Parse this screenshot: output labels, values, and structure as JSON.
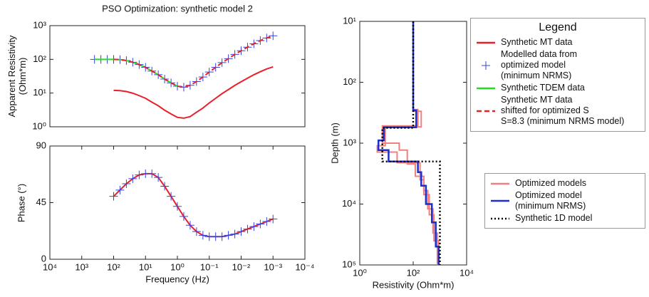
{
  "chart_data": [
    {
      "type": "line",
      "title": "PSO Optimization: synthetic model 2",
      "ylabel": "Apparent Resistivity\n(Ohm*m)",
      "xscale": "log",
      "yscale": "log",
      "xlim": [
        10000,
        0.0001
      ],
      "ylim": [
        1,
        1000
      ],
      "yticks": [
        {
          "value": 1,
          "label": "10⁰"
        },
        {
          "value": 10,
          "label": "10¹"
        },
        {
          "value": 100,
          "label": "10²"
        },
        {
          "value": 1000,
          "label": "10³"
        }
      ],
      "legend_title": "Legend",
      "series": [
        {
          "name": "Synthetic MT data",
          "color": "#e8202a",
          "line_style": "solid",
          "marker": "none",
          "x": [
            100,
            63.1,
            39.8,
            25.1,
            15.8,
            10,
            6.31,
            3.98,
            2.51,
            1.58,
            1,
            0.631,
            0.398,
            0.251,
            0.158,
            0.1,
            0.0631,
            0.0398,
            0.0251,
            0.0158,
            0.01,
            0.00631,
            0.00398,
            0.00251,
            0.00158,
            0.001
          ],
          "values": [
            12,
            11.8,
            11.1,
            9.9,
            8.4,
            7,
            5.4,
            4.2,
            3.1,
            2.4,
            1.9,
            1.8,
            2,
            2.7,
            3.6,
            5.1,
            7,
            9.6,
            12.7,
            16.9,
            21.7,
            27.7,
            35,
            43,
            52,
            60
          ]
        },
        {
          "name": "Modelled data from\noptimized model\n(minimum NRMS)",
          "color": "#3344dd",
          "line_style": "none",
          "marker": "+",
          "x": [
            398,
            251,
            158,
            100,
            63.1,
            39.8,
            25.1,
            15.8,
            10,
            6.31,
            3.98,
            2.51,
            1.58,
            1,
            0.631,
            0.398,
            0.251,
            0.158,
            0.1,
            0.0631,
            0.0398,
            0.0251,
            0.0158,
            0.01,
            0.00631,
            0.00398,
            0.00251,
            0.00158,
            0.001
          ],
          "values": [
            100,
            100,
            100,
            100,
            98,
            92,
            82,
            70,
            58,
            45,
            35,
            26,
            20,
            16,
            15,
            17,
            22,
            30,
            42,
            58,
            80,
            105,
            140,
            180,
            230,
            290,
            360,
            430,
            500
          ]
        },
        {
          "name": "Synthetic TDEM data",
          "color": "#22dd22",
          "line_style": "solid",
          "marker": "none",
          "x": [
            398,
            251,
            158,
            100,
            63.1,
            39.8,
            25.1,
            15.8,
            10,
            6.31,
            3.98,
            2.51,
            1.58,
            1
          ],
          "values": [
            100,
            100,
            100,
            100,
            98,
            92,
            82,
            70,
            58,
            45,
            35,
            26,
            20,
            16
          ]
        },
        {
          "name": "Synthetic MT data\nshifted for optimized S\nS=8.3 (minimum NRMS model)",
          "color": "#e8202a",
          "line_style": "dashed",
          "marker": "none",
          "x": [
            100,
            63.1,
            39.8,
            25.1,
            15.8,
            10,
            6.31,
            3.98,
            2.51,
            1.58,
            1,
            0.631,
            0.398,
            0.251,
            0.158,
            0.1,
            0.0631,
            0.0398,
            0.0251,
            0.0158,
            0.01,
            0.00631,
            0.00398,
            0.00251,
            0.00158,
            0.001
          ],
          "values": [
            100,
            98,
            92,
            82,
            70,
            58,
            45,
            35,
            26,
            20,
            16,
            15,
            17,
            22,
            30,
            42,
            58,
            80,
            105,
            140,
            180,
            230,
            290,
            360,
            430,
            500
          ]
        }
      ]
    },
    {
      "type": "line",
      "xlabel": "Frequency (Hz)",
      "ylabel": "Phase (°)",
      "xscale": "log",
      "yscale": "linear",
      "xlim": [
        10000,
        0.0001
      ],
      "ylim": [
        0,
        90
      ],
      "xticks": [
        {
          "value": 10000,
          "label": "10⁴"
        },
        {
          "value": 1000,
          "label": "10³"
        },
        {
          "value": 100,
          "label": "10²"
        },
        {
          "value": 10,
          "label": "10¹"
        },
        {
          "value": 1,
          "label": "10⁰"
        },
        {
          "value": 0.1,
          "label": "10⁻¹"
        },
        {
          "value": 0.01,
          "label": "10⁻²"
        },
        {
          "value": 0.001,
          "label": "10⁻³"
        },
        {
          "value": 0.0001,
          "label": "10⁻⁴"
        }
      ],
      "yticks": [
        0,
        45,
        90
      ],
      "series": [
        {
          "color": "#e8202a",
          "line_style": "solid",
          "marker": "none",
          "x": [
            100,
            63.1,
            39.8,
            25.1,
            15.8,
            10,
            6.31,
            3.98,
            2.51,
            1.58,
            1,
            0.631,
            0.398,
            0.251,
            0.158,
            0.1,
            0.0631,
            0.0398,
            0.0251,
            0.0158,
            0.01,
            0.00631,
            0.00398,
            0.00251,
            0.00158,
            0.001
          ],
          "values": [
            50,
            55,
            60,
            64,
            67,
            68,
            68,
            65,
            58,
            50,
            42,
            34,
            27,
            22,
            19,
            18,
            18,
            18,
            19,
            20,
            22,
            24,
            26,
            28,
            30,
            32
          ]
        },
        {
          "color": "#3344dd",
          "line_style": "none",
          "marker": "+",
          "x": [
            100,
            63.1,
            39.8,
            25.1,
            15.8,
            10,
            6.31,
            3.98,
            2.51,
            1.58,
            1,
            0.631,
            0.398,
            0.251,
            0.158,
            0.1,
            0.0631,
            0.0398,
            0.0251,
            0.0158,
            0.01,
            0.00631,
            0.00398,
            0.00251,
            0.00158,
            0.001
          ],
          "values": [
            50,
            55,
            60,
            64,
            67,
            68,
            68,
            65,
            58,
            50,
            42,
            34,
            27,
            22,
            19,
            18,
            18,
            18,
            19,
            20,
            22,
            24,
            26,
            28,
            30,
            32
          ]
        }
      ]
    },
    {
      "type": "line",
      "xlabel": "Resistivity (Ohm*m)",
      "ylabel": "Depth (m)",
      "xscale": "log",
      "yscale": "log",
      "xlim": [
        1,
        10000
      ],
      "ylim": [
        100000,
        10
      ],
      "xticks": [
        {
          "value": 1,
          "label": "10⁰"
        },
        {
          "value": 100,
          "label": "10²"
        },
        {
          "value": 10000,
          "label": "10⁴"
        }
      ],
      "yticks": [
        {
          "value": 10,
          "label": "10¹"
        },
        {
          "value": 100,
          "label": "10²"
        },
        {
          "value": 1000,
          "label": "10³"
        },
        {
          "value": 10000,
          "label": "10⁴"
        },
        {
          "value": 100000,
          "label": "10⁵"
        }
      ],
      "series": [
        {
          "name": "Optimized models",
          "color": "#f08080",
          "line_style": "solid",
          "marker": "none",
          "x": [
            100,
            100,
            200,
            200,
            9,
            9,
            4.5,
            4.5,
            25,
            25,
            180,
            180,
            250,
            250,
            400,
            400,
            600,
            600,
            900,
            900
          ],
          "values": [
            10,
            300,
            300,
            540,
            540,
            1100,
            1100,
            1400,
            1400,
            2100,
            2100,
            4000,
            4000,
            7000,
            7000,
            15000,
            15000,
            40000,
            40000,
            100000
          ]
        },
        {
          "color": "#f08080",
          "line_style": "solid",
          "marker": "none",
          "x": [
            100,
            100,
            150,
            150,
            7,
            7,
            30,
            30,
            60,
            60,
            120,
            120,
            250,
            250,
            350,
            350,
            550,
            550,
            800,
            800
          ],
          "values": [
            10,
            280,
            280,
            520,
            520,
            1000,
            1000,
            1300,
            1300,
            2200,
            2200,
            3500,
            3500,
            6000,
            6000,
            12000,
            12000,
            30000,
            30000,
            100000
          ]
        },
        {
          "name": "Optimized model\n(minimum NRMS)",
          "color": "#1a2fcc",
          "line_style": "solid",
          "marker": "none",
          "width": 2.5,
          "x": [
            100,
            100,
            130,
            130,
            8,
            8,
            5,
            5,
            12,
            12,
            150,
            150,
            200,
            200,
            300,
            300,
            500,
            500,
            700,
            700,
            900,
            900
          ],
          "values": [
            10,
            290,
            290,
            550,
            550,
            900,
            900,
            1300,
            1300,
            2000,
            2000,
            3000,
            3000,
            5000,
            5000,
            10000,
            10000,
            20000,
            20000,
            50000,
            50000,
            100000
          ]
        },
        {
          "name": "Synthetic 1D model",
          "color": "#000000",
          "line_style": "dotted",
          "marker": "none",
          "width": 2.5,
          "x": [
            100,
            100,
            7,
            7,
            1000,
            1000
          ],
          "values": [
            10,
            560,
            560,
            2000,
            2000,
            100000
          ]
        }
      ]
    }
  ]
}
